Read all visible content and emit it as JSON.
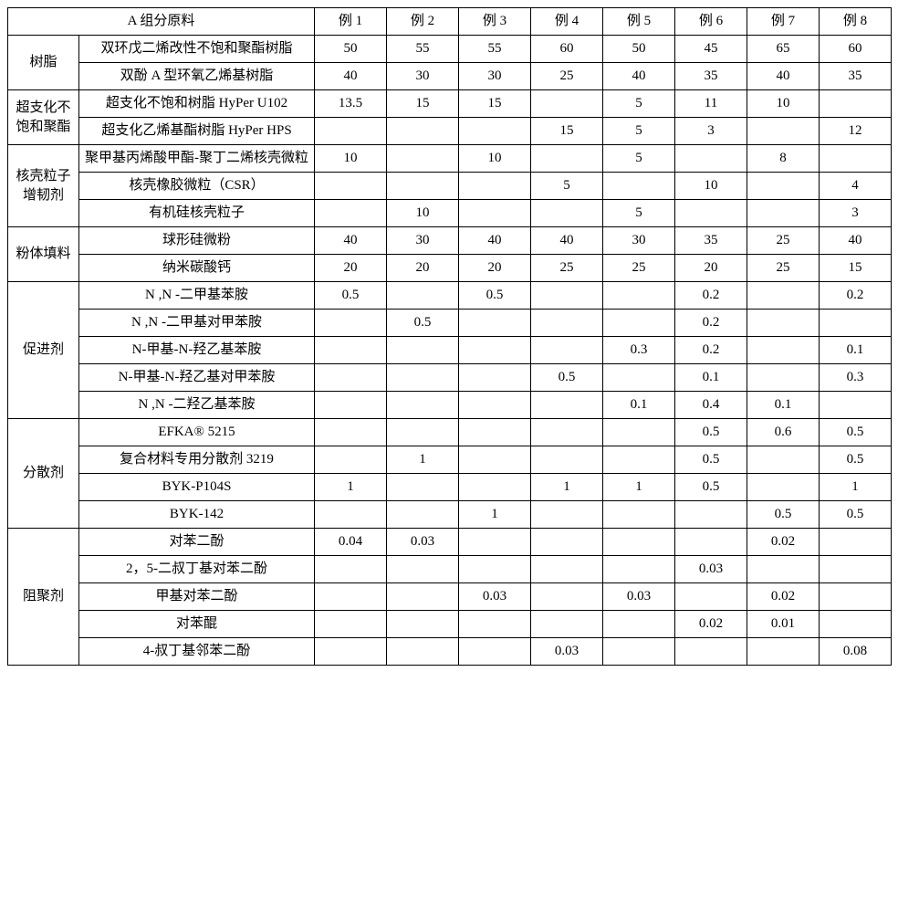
{
  "header": {
    "group_label": "A 组分原料",
    "examples": [
      "例 1",
      "例 2",
      "例 3",
      "例 4",
      "例 5",
      "例 6",
      "例 7",
      "例 8"
    ]
  },
  "sections": [
    {
      "category": "树脂",
      "rows": [
        {
          "label": "双环戊二烯改性不饱和聚酯树脂",
          "vals": [
            "50",
            "55",
            "55",
            "60",
            "50",
            "45",
            "65",
            "60"
          ]
        },
        {
          "label": "双酚 A 型环氧乙烯基树脂",
          "vals": [
            "40",
            "30",
            "30",
            "25",
            "40",
            "35",
            "40",
            "35"
          ]
        }
      ]
    },
    {
      "category": "超支化不饱和聚酯",
      "rows": [
        {
          "label": "超支化不饱和树脂 HyPer U102",
          "vals": [
            "13.5",
            "15",
            "15",
            "",
            "5",
            "11",
            "10",
            ""
          ]
        },
        {
          "label": "超支化乙烯基酯树脂 HyPer HPS",
          "vals": [
            "",
            "",
            "",
            "15",
            "5",
            "3",
            "",
            "12"
          ]
        }
      ]
    },
    {
      "category": "核壳粒子增韧剂",
      "rows": [
        {
          "label": "聚甲基丙烯酸甲酯-聚丁二烯核壳微粒",
          "vals": [
            "10",
            "",
            "10",
            "",
            "5",
            "",
            "8",
            ""
          ]
        },
        {
          "label": "核壳橡胶微粒（CSR）",
          "vals": [
            "",
            "",
            "",
            "5",
            "",
            "10",
            "",
            "4"
          ]
        },
        {
          "label": "有机硅核壳粒子",
          "vals": [
            "",
            "10",
            "",
            "",
            "5",
            "",
            "",
            "3"
          ]
        }
      ]
    },
    {
      "category": "粉体填料",
      "rows": [
        {
          "label": "球形硅微粉",
          "vals": [
            "40",
            "30",
            "40",
            "40",
            "30",
            "35",
            "25",
            "40"
          ]
        },
        {
          "label": "纳米碳酸钙",
          "vals": [
            "20",
            "20",
            "20",
            "25",
            "25",
            "20",
            "25",
            "15"
          ]
        }
      ]
    },
    {
      "category": "促进剂",
      "rows": [
        {
          "label": "N ,N -二甲基苯胺",
          "vals": [
            "0.5",
            "",
            "0.5",
            "",
            "",
            "0.2",
            "",
            "0.2"
          ]
        },
        {
          "label": "N ,N -二甲基对甲苯胺",
          "vals": [
            "",
            "0.5",
            "",
            "",
            "",
            "0.2",
            "",
            ""
          ]
        },
        {
          "label": "N-甲基-N-羟乙基苯胺",
          "vals": [
            "",
            "",
            "",
            "",
            "0.3",
            "0.2",
            "",
            "0.1"
          ]
        },
        {
          "label": "N-甲基-N-羟乙基对甲苯胺",
          "vals": [
            "",
            "",
            "",
            "0.5",
            "",
            "0.1",
            "",
            "0.3"
          ]
        },
        {
          "label": "N ,N -二羟乙基苯胺",
          "vals": [
            "",
            "",
            "",
            "",
            "0.1",
            "0.4",
            "0.1",
            ""
          ]
        }
      ]
    },
    {
      "category": "分散剂",
      "rows": [
        {
          "label": "EFKA® 5215",
          "vals": [
            "",
            "",
            "",
            "",
            "",
            "0.5",
            "0.6",
            "0.5"
          ]
        },
        {
          "label": "复合材料专用分散剂 3219",
          "vals": [
            "",
            "1",
            "",
            "",
            "",
            "0.5",
            "",
            "0.5"
          ]
        },
        {
          "label": "BYK-P104S",
          "vals": [
            "1",
            "",
            "",
            "1",
            "1",
            "0.5",
            "",
            "1"
          ]
        },
        {
          "label": "BYK-142",
          "vals": [
            "",
            "",
            "1",
            "",
            "",
            "",
            "0.5",
            "0.5"
          ]
        }
      ]
    },
    {
      "category": "阻聚剂",
      "rows": [
        {
          "label": "对苯二酚",
          "vals": [
            "0.04",
            "0.03",
            "",
            "",
            "",
            "",
            "0.02",
            ""
          ]
        },
        {
          "label": "2，5-二叔丁基对苯二酚",
          "vals": [
            "",
            "",
            "",
            "",
            "",
            "0.03",
            "",
            ""
          ]
        },
        {
          "label": "甲基对苯二酚",
          "vals": [
            "",
            "",
            "0.03",
            "",
            "0.03",
            "",
            "0.02",
            ""
          ]
        },
        {
          "label": "对苯醌",
          "vals": [
            "",
            "",
            "",
            "",
            "",
            "0.02",
            "0.01",
            ""
          ]
        },
        {
          "label": "4-叔丁基邻苯二酚",
          "vals": [
            "",
            "",
            "",
            "0.03",
            "",
            "",
            "",
            "0.08"
          ]
        }
      ]
    }
  ]
}
